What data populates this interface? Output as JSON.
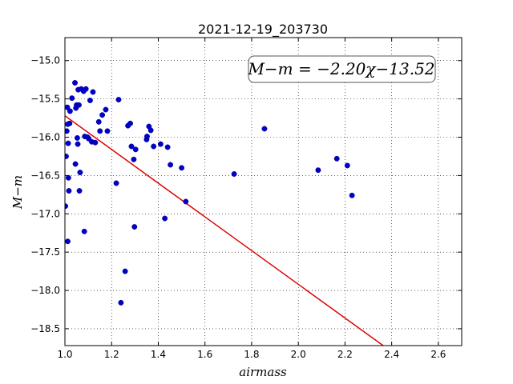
{
  "chart_data": {
    "type": "scatter",
    "title": "2021-12-19_203730",
    "xlabel": "airmass",
    "ylabel": "M−m",
    "xlim": [
      1.0,
      2.7
    ],
    "ylim": [
      -18.72,
      -14.7
    ],
    "y_inverted": true,
    "grid": true,
    "x_ticks": [
      1.0,
      1.2,
      1.4,
      1.6,
      1.8,
      2.0,
      2.2,
      2.4,
      2.6
    ],
    "x_tick_labels": [
      "1.0",
      "1.2",
      "1.4",
      "1.6",
      "1.8",
      "2.0",
      "2.2",
      "2.4",
      "2.6"
    ],
    "y_ticks": [
      -15.0,
      -15.5,
      -16.0,
      -16.5,
      -17.0,
      -17.5,
      -18.0,
      -18.5
    ],
    "y_tick_labels": [
      "−15.0",
      "−15.5",
      "−16.0",
      "−16.5",
      "−17.0",
      "−17.5",
      "−18.0",
      "−18.5"
    ],
    "annotation": "M−m = −2.20χ−13.52",
    "annotation_placement": "top-right",
    "points_color": "#0000cc",
    "fit_color": "#dd0000",
    "series": [
      {
        "values": [
          [
            1.002,
            -16.9
          ],
          [
            1.005,
            -16.25
          ],
          [
            1.008,
            -15.92
          ],
          [
            1.01,
            -15.61
          ],
          [
            1.012,
            -15.83
          ],
          [
            1.014,
            -16.08
          ],
          [
            1.015,
            -16.53
          ],
          [
            1.017,
            -16.7
          ],
          [
            1.012,
            -17.36
          ],
          [
            1.02,
            -15.82
          ],
          [
            1.022,
            -15.66
          ],
          [
            1.03,
            -15.49
          ],
          [
            1.043,
            -15.29
          ],
          [
            1.045,
            -16.35
          ],
          [
            1.047,
            -15.62
          ],
          [
            1.05,
            -15.58
          ],
          [
            1.053,
            -16.01
          ],
          [
            1.055,
            -16.09
          ],
          [
            1.057,
            -15.38
          ],
          [
            1.06,
            -15.58
          ],
          [
            1.062,
            -16.7
          ],
          [
            1.065,
            -16.46
          ],
          [
            1.07,
            -15.37
          ],
          [
            1.08,
            -15.4
          ],
          [
            1.083,
            -17.23
          ],
          [
            1.085,
            -15.99
          ],
          [
            1.09,
            -15.37
          ],
          [
            1.097,
            -16.0
          ],
          [
            1.102,
            -16.02
          ],
          [
            1.108,
            -15.52
          ],
          [
            1.115,
            -16.06
          ],
          [
            1.12,
            -15.41
          ],
          [
            1.13,
            -16.07
          ],
          [
            1.145,
            -15.8
          ],
          [
            1.15,
            -15.92
          ],
          [
            1.16,
            -15.71
          ],
          [
            1.175,
            -15.64
          ],
          [
            1.182,
            -15.92
          ],
          [
            1.22,
            -16.6
          ],
          [
            1.23,
            -15.51
          ],
          [
            1.24,
            -18.16
          ],
          [
            1.258,
            -17.75
          ],
          [
            1.27,
            -15.85
          ],
          [
            1.28,
            -15.82
          ],
          [
            1.285,
            -16.12
          ],
          [
            1.295,
            -16.29
          ],
          [
            1.298,
            -17.17
          ],
          [
            1.303,
            -16.16
          ],
          [
            1.35,
            -16.03
          ],
          [
            1.352,
            -15.99
          ],
          [
            1.36,
            -15.86
          ],
          [
            1.368,
            -15.91
          ],
          [
            1.38,
            -16.12
          ],
          [
            1.41,
            -16.09
          ],
          [
            1.428,
            -17.06
          ],
          [
            1.44,
            -16.13
          ],
          [
            1.452,
            -16.36
          ],
          [
            1.5,
            -16.4
          ],
          [
            1.518,
            -16.84
          ],
          [
            1.725,
            -16.48
          ],
          [
            1.855,
            -15.89
          ],
          [
            2.085,
            -16.43
          ],
          [
            2.165,
            -16.28
          ],
          [
            2.21,
            -16.37
          ],
          [
            2.23,
            -16.76
          ]
        ]
      }
    ],
    "fit_line": {
      "slope": -2.2,
      "intercept": -13.52
    }
  }
}
